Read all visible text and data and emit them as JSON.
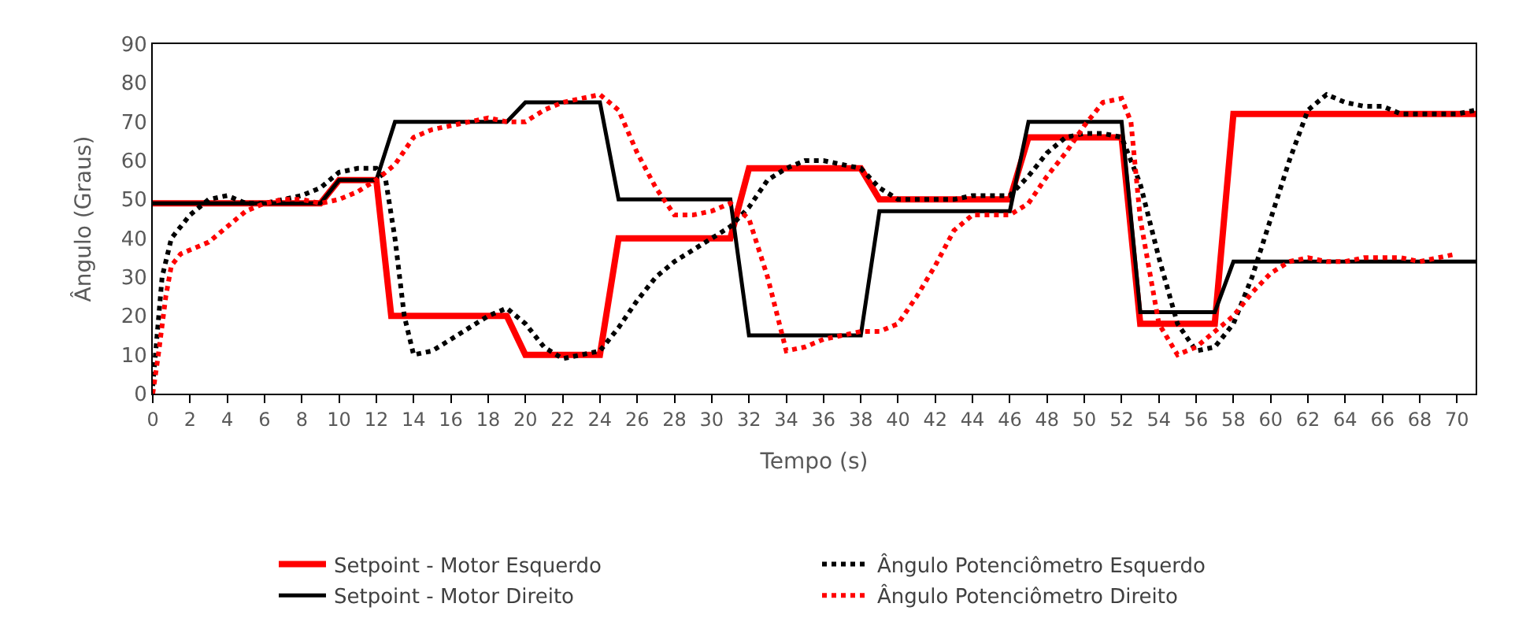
{
  "chart_data": {
    "type": "line",
    "xlabel": "Tempo (s)",
    "ylabel": "Ângulo (Graus)",
    "xlim": [
      0,
      71
    ],
    "ylim": [
      0,
      90
    ],
    "xticks": [
      0,
      2,
      4,
      6,
      8,
      10,
      12,
      14,
      16,
      18,
      20,
      22,
      24,
      26,
      28,
      30,
      32,
      34,
      36,
      38,
      40,
      42,
      44,
      46,
      48,
      50,
      52,
      54,
      56,
      58,
      60,
      62,
      64,
      66,
      68,
      70
    ],
    "yticks": [
      0,
      10,
      20,
      30,
      40,
      50,
      60,
      70,
      80,
      90
    ],
    "grid": false,
    "legend": "bottom",
    "marker": "none",
    "series": [
      {
        "name": "Setpoint - Motor Esquerdo",
        "color": "#ff0000",
        "line_style": "solid",
        "x": [
          0,
          9,
          10,
          12,
          12.8,
          19,
          20,
          24,
          25,
          31,
          32,
          38,
          39,
          46,
          47,
          52,
          53,
          57,
          58,
          71
        ],
        "values": [
          49,
          49,
          55,
          55,
          20,
          20,
          10,
          10,
          40,
          40,
          58,
          58,
          50,
          50,
          66,
          66,
          18,
          18,
          72,
          72
        ]
      },
      {
        "name": "Ângulo Potenciômetro Esquerdo",
        "color": "#000000",
        "line_style": "dotted",
        "x": [
          0,
          0.5,
          1,
          2,
          3,
          4,
          5,
          6,
          7,
          8,
          9,
          10,
          11,
          12,
          12.5,
          13,
          13.5,
          14,
          15,
          16,
          17,
          18,
          19,
          20,
          21,
          22,
          23,
          24,
          25,
          26,
          27,
          28,
          29,
          30,
          31,
          32,
          33,
          34,
          35,
          36,
          37,
          38,
          39,
          40,
          41,
          42,
          43,
          44,
          45,
          46,
          47,
          48,
          49,
          50,
          51,
          52,
          53,
          54,
          55,
          56,
          57,
          58,
          59,
          60,
          61,
          62,
          63,
          64,
          65,
          66,
          67,
          68,
          69,
          70,
          71
        ],
        "values": [
          2,
          30,
          40,
          46,
          50,
          51,
          49,
          49,
          50,
          51,
          53,
          57,
          58,
          58,
          55,
          40,
          20,
          10,
          11,
          14,
          17,
          20,
          22,
          18,
          12,
          9,
          10,
          11,
          17,
          24,
          30,
          34,
          37,
          40,
          43,
          48,
          55,
          58,
          60,
          60,
          59,
          58,
          53,
          50,
          50,
          50,
          50,
          51,
          51,
          51,
          56,
          62,
          66,
          67,
          67,
          66,
          54,
          35,
          18,
          11,
          12,
          18,
          30,
          45,
          60,
          73,
          77,
          75,
          74,
          74,
          72,
          72,
          72,
          72,
          73
        ]
      },
      {
        "name": "Setpoint - Motor Direito",
        "color": "#000000",
        "line_style": "solid",
        "x": [
          0,
          9,
          10,
          12,
          13,
          19,
          20,
          24,
          25,
          31,
          32,
          38,
          39,
          46,
          47,
          52,
          53,
          57,
          58,
          71
        ],
        "values": [
          49,
          49,
          55,
          55,
          70,
          70,
          75,
          75,
          50,
          50,
          15,
          15,
          47,
          47,
          70,
          70,
          21,
          21,
          34,
          34
        ]
      },
      {
        "name": "Ângulo Potenciômetro Direito",
        "color": "#ff0000",
        "line_style": "dotted",
        "x": [
          0,
          0.3,
          0.7,
          1,
          1.5,
          2,
          3,
          4,
          5,
          6,
          7,
          8,
          9,
          10,
          11,
          12,
          13,
          14,
          15,
          16,
          17,
          18,
          19,
          20,
          21,
          22,
          23,
          24,
          25,
          26,
          27,
          28,
          29,
          30,
          31,
          32,
          33,
          34,
          35,
          36,
          37,
          38,
          39,
          40,
          41,
          42,
          43,
          44,
          45,
          46,
          47,
          48,
          49,
          50,
          51,
          52,
          52.5,
          53,
          54,
          55,
          56,
          57,
          58,
          59,
          60,
          61,
          62,
          63,
          64,
          65,
          66,
          67,
          68,
          69,
          70
        ],
        "values": [
          0,
          10,
          25,
          33,
          36,
          37,
          39,
          43,
          47,
          49,
          50,
          50,
          49,
          50,
          52,
          55,
          59,
          66,
          68,
          69,
          70,
          71,
          70,
          70,
          73,
          75,
          76,
          77,
          73,
          62,
          53,
          46,
          46,
          47,
          49,
          45,
          30,
          11,
          12,
          14,
          15,
          16,
          16,
          18,
          25,
          33,
          42,
          46,
          46,
          46,
          49,
          56,
          62,
          69,
          75,
          76,
          70,
          45,
          18,
          10,
          12,
          16,
          20,
          26,
          31,
          34,
          35,
          34,
          34,
          35,
          35,
          35,
          34,
          35,
          36
        ]
      }
    ]
  }
}
